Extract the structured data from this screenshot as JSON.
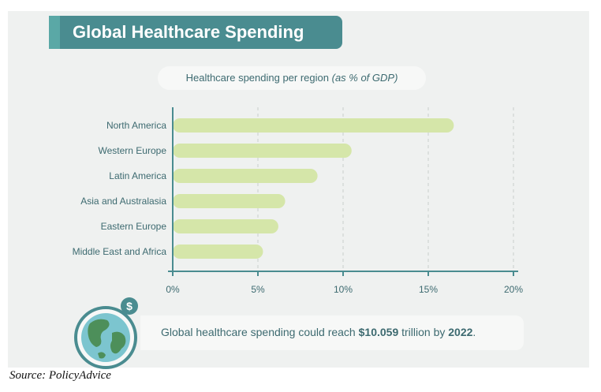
{
  "header": {
    "title": "Global Healthcare Spending"
  },
  "subtitle": {
    "main": "Healthcare spending per region ",
    "unit": "(as % of GDP)"
  },
  "chart_data": {
    "type": "bar",
    "orientation": "horizontal",
    "title": "Healthcare spending per region (as % of GDP)",
    "categories": [
      "North America",
      "Western Europe",
      "Latin America",
      "Asia and Australasia",
      "Eastern Europe",
      "Middle East and Africa"
    ],
    "values": [
      16.5,
      10.5,
      8.5,
      6.6,
      6.2,
      5.3
    ],
    "xlim": [
      0,
      20
    ],
    "ticks": [
      0,
      5,
      10,
      15,
      20
    ],
    "tick_labels": [
      "0%",
      "5%",
      "10%",
      "15%",
      "20%"
    ],
    "grid": "vertical dashed",
    "bar_color": "#d5e6a9",
    "axis_color": "#4a8c90"
  },
  "note": {
    "prefix": "Global healthcare spending could reach ",
    "amount": "$10.059",
    "middle": " trillion by ",
    "year": "2022",
    "suffix": "."
  },
  "icons": {
    "globe": "globe-icon",
    "dollar": "dollar-coin-icon",
    "dollar_symbol": "$"
  },
  "colors": {
    "title_band": "#4a8c90",
    "accent": "#5aa8a6",
    "panel": "#eff1f0"
  },
  "source": "Source: PolicyAdvice"
}
